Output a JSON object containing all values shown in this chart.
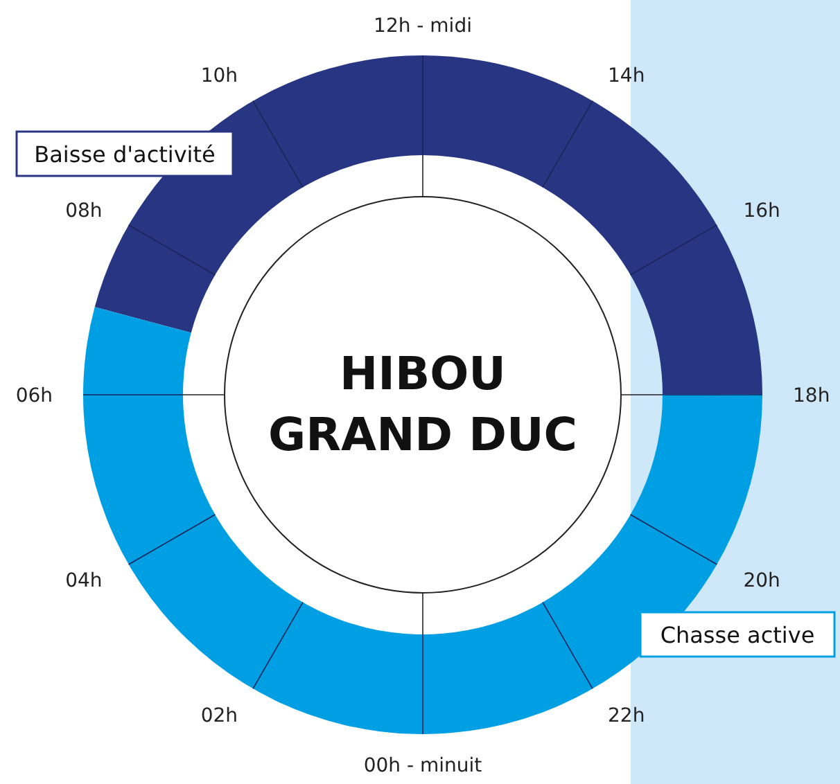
{
  "chart_data": {
    "type": "donut",
    "title": "HIBOU GRAND DUC",
    "categories": [
      "Baisse d'activité",
      "Chasse active"
    ],
    "values": [
      45.8,
      54.2
    ],
    "colors": [
      "#283583",
      "#009fe3"
    ],
    "annotations": [
      "12h - midi",
      "14h",
      "16h",
      "18h",
      "20h",
      "22h",
      "00h - minuit",
      "02h",
      "04h",
      "06h",
      "08h",
      "10h"
    ]
  }
}
